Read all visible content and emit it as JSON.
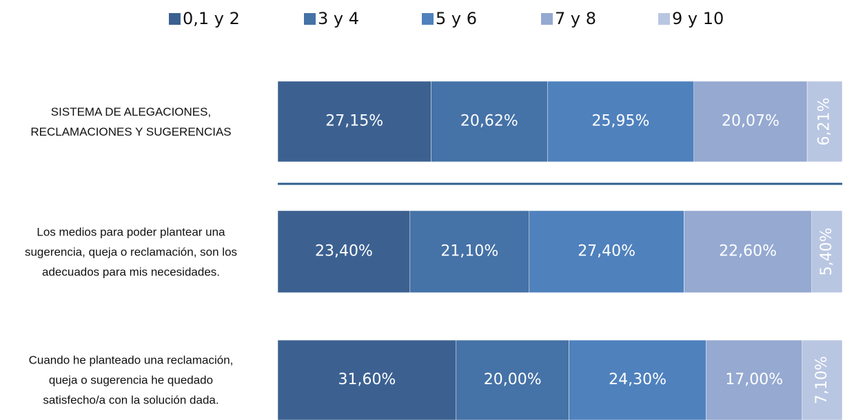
{
  "chart_data": {
    "type": "stacked_barh",
    "categories": [
      "SISTEMA DE ALEGACIONES,\nRECLAMACIONES Y SUGERENCIAS",
      "Los medios para poder plantear una\nsugerencia, queja o reclamación, son los\nadecuados para mis necesidades.",
      "Cuando he planteado una reclamación,\nqueja o sugerencia he quedado\nsatisfecho/a con la solución dada."
    ],
    "series": [
      {
        "name": "0,1 y 2",
        "color": "#3c6191",
        "values": [
          27.15,
          23.4,
          31.6
        ],
        "value_labels": [
          "27,15%",
          "23,40%",
          "31,60%"
        ]
      },
      {
        "name": "3 y 4",
        "color": "#4572a7",
        "values": [
          20.62,
          21.1,
          20.0
        ],
        "value_labels": [
          "20,62%",
          "21,10%",
          "20,00%"
        ]
      },
      {
        "name": "5 y 6",
        "color": "#4f81bd",
        "values": [
          25.95,
          27.4,
          24.3
        ],
        "value_labels": [
          "25,95%",
          "27,40%",
          "24,30%"
        ]
      },
      {
        "name": "7 y 8",
        "color": "#95a9d1",
        "values": [
          20.07,
          22.6,
          17.0
        ],
        "value_labels": [
          "20,07%",
          "22,60%",
          "17,00%"
        ]
      },
      {
        "name": "9 y 10",
        "color": "#b9c6e2",
        "values": [
          6.21,
          5.4,
          7.1
        ],
        "value_labels": [
          "6,21%",
          "5,40%",
          "7,10%"
        ]
      }
    ],
    "legend": "top"
  }
}
